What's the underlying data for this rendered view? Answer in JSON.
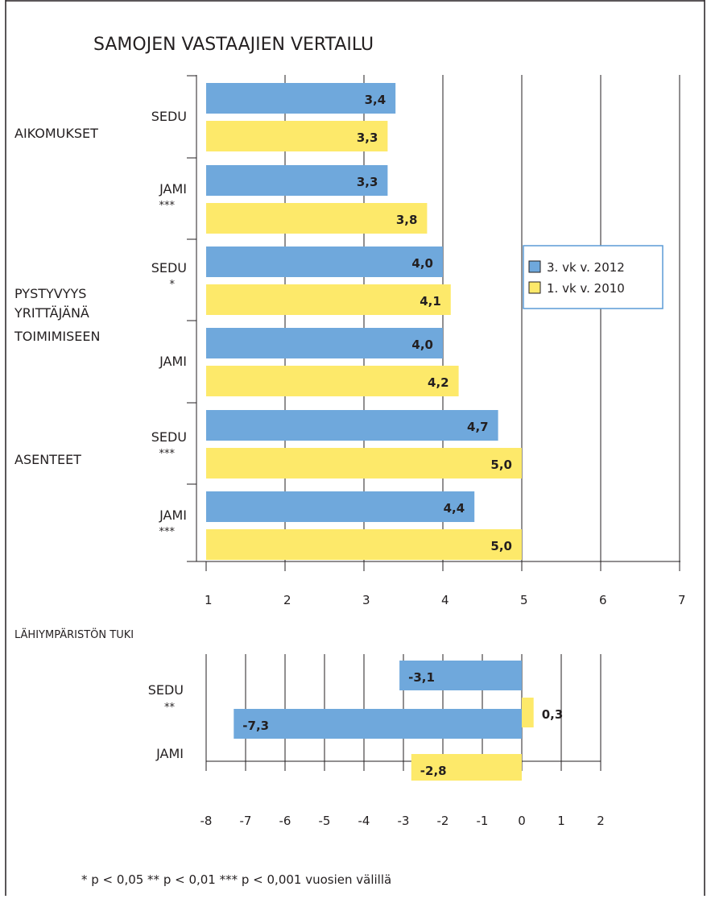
{
  "colors": {
    "blue": "#6fa8dc",
    "yellow": "#fde96a",
    "legend_border": "#5b9bd5",
    "frame": "#231f20"
  },
  "chart_data": [
    {
      "type": "bar",
      "orientation": "horizontal",
      "title": "SAMOJEN VASTAAJIEN VERTAILU",
      "xlim": [
        1,
        7
      ],
      "ticks": [
        "1",
        "2",
        "3",
        "4",
        "5",
        "6",
        "7"
      ],
      "grid": true,
      "legend_position": "right",
      "groups": [
        {
          "name": "AIKOMUKSET",
          "name_lines": [
            "AIKOMUKSET"
          ],
          "rows": [
            {
              "label": "SEDU",
              "sig": "",
              "values": [
                3.4,
                3.3
              ],
              "value_labels": [
                "3,4",
                "3,3"
              ]
            },
            {
              "label": "JAMI",
              "sig": "***",
              "values": [
                3.3,
                3.8
              ],
              "value_labels": [
                "3,3",
                "3,8"
              ]
            }
          ]
        },
        {
          "name": "PYSTYVYYS YRITTÄJÄNÄ TOIMIMISEEN",
          "name_lines": [
            "PYSTYVYYS",
            "YRITTÄJÄNÄ",
            "TOIMIMISEEN"
          ],
          "rows": [
            {
              "label": "SEDU",
              "sig": "*",
              "values": [
                4.0,
                4.1
              ],
              "value_labels": [
                "4,0",
                "4,1"
              ]
            },
            {
              "label": "JAMI",
              "sig": "",
              "values": [
                4.0,
                4.2
              ],
              "value_labels": [
                "4,0",
                "4,2"
              ]
            }
          ]
        },
        {
          "name": "ASENTEET",
          "name_lines": [
            "ASENTEET"
          ],
          "rows": [
            {
              "label": "SEDU",
              "sig": "***",
              "values": [
                4.7,
                5.0
              ],
              "value_labels": [
                "4,7",
                "5,0"
              ]
            },
            {
              "label": "JAMI",
              "sig": "***",
              "values": [
                4.4,
                5.0
              ],
              "value_labels": [
                "4,4",
                "5,0"
              ]
            }
          ]
        }
      ],
      "series": [
        {
          "name": "3. vk v. 2012",
          "color": "#6fa8dc"
        },
        {
          "name": "1. vk v. 2010",
          "color": "#fde96a"
        }
      ]
    },
    {
      "type": "bar",
      "orientation": "horizontal",
      "title": "LÄHIYMPÄRISTÖN TUKI",
      "xlim": [
        -8,
        2
      ],
      "ticks": [
        "-8",
        "-7",
        "-6",
        "-5",
        "-4",
        "-3",
        "-2",
        "-1",
        "0",
        "1",
        "2"
      ],
      "grid": true,
      "rows": [
        {
          "label": "SEDU",
          "sig": "**",
          "values": [
            -3.1,
            0.3
          ],
          "value_labels": [
            "-3,1",
            "0,3"
          ]
        },
        {
          "label": "JAMI",
          "sig": "",
          "values": [
            -7.3,
            -2.8
          ],
          "value_labels": [
            "-7,3",
            "-2,8"
          ]
        }
      ]
    }
  ],
  "footnote": "* p < 0,05  ** p < 0,01  *** p < 0,001 vuosien välillä"
}
